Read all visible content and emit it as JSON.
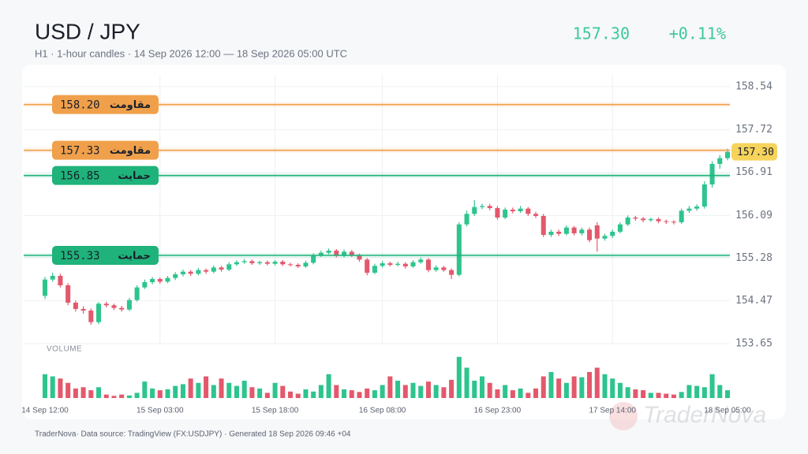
{
  "chart_data": {
    "type": "candlestick",
    "title": "USD / JPY",
    "subtitle": "H1 · 1-hour candles · 14 Sep 2026 12:00 — 18 Sep 2026 05:00 UTC",
    "price": "157.30",
    "change": "+0.11%",
    "volume_label": "VOLUME",
    "footer": "TraderNova· Data source: TradingView (FX:USDJPY) · Generated 18 Sep 2026 09:46 +04",
    "watermark": "TraderNova",
    "up_color": "#2ec48e",
    "down_color": "#e4586c",
    "price_color": "#3cc99b",
    "badge_color": "#f6d35b",
    "grid": true,
    "ylim": [
      153.65,
      158.54
    ],
    "yticks": [
      153.65,
      154.47,
      155.28,
      156.09,
      156.91,
      157.72,
      158.54
    ],
    "volume_ylim": [
      0,
      100
    ],
    "categories": [
      "14 Sep 12:00",
      null,
      null,
      null,
      null,
      null,
      null,
      null,
      null,
      null,
      null,
      null,
      null,
      null,
      null,
      "15 Sep 03:00",
      null,
      null,
      null,
      null,
      null,
      null,
      null,
      null,
      null,
      null,
      null,
      null,
      null,
      null,
      "15 Sep 18:00",
      null,
      null,
      null,
      null,
      null,
      null,
      null,
      null,
      null,
      null,
      null,
      null,
      null,
      "16 Sep 08:00",
      null,
      null,
      null,
      null,
      null,
      null,
      null,
      null,
      null,
      null,
      null,
      null,
      null,
      null,
      "16 Sep 23:00",
      null,
      null,
      null,
      null,
      null,
      null,
      null,
      null,
      null,
      null,
      null,
      null,
      null,
      null,
      "17 Sep 14:00",
      null,
      null,
      null,
      null,
      null,
      null,
      null,
      null,
      null,
      null,
      null,
      null,
      null,
      null,
      "18 Sep 05:00"
    ],
    "open": [
      154.56,
      154.87,
      154.94,
      154.76,
      154.43,
      154.31,
      154.28,
      154.06,
      154.41,
      154.38,
      154.33,
      154.3,
      154.48,
      154.72,
      154.82,
      154.88,
      154.83,
      154.9,
      154.97,
      155.02,
      154.98,
      155.05,
      155.02,
      155.1,
      155.06,
      155.16,
      155.2,
      155.22,
      155.18,
      155.2,
      155.17,
      155.21,
      155.16,
      155.15,
      155.12,
      155.19,
      155.33,
      155.38,
      155.42,
      155.32,
      155.4,
      155.33,
      155.25,
      155.0,
      155.13,
      155.18,
      155.15,
      155.17,
      155.12,
      155.2,
      155.25,
      155.05,
      155.1,
      155.05,
      154.96,
      155.92,
      156.12,
      156.25,
      156.27,
      156.23,
      156.05,
      156.2,
      156.17,
      156.22,
      156.12,
      156.08,
      155.72,
      155.78,
      155.74,
      155.86,
      155.75,
      155.82,
      155.9,
      155.65,
      155.7,
      155.78,
      155.92,
      156.05,
      156.03,
      156.0,
      156.02,
      155.98,
      155.97,
      155.96,
      156.18,
      156.22,
      156.26,
      156.68,
      157.07,
      157.18
    ],
    "high": [
      154.92,
      155.0,
      154.98,
      154.8,
      154.47,
      154.36,
      154.32,
      154.44,
      154.45,
      154.41,
      154.37,
      154.52,
      154.76,
      154.87,
      154.92,
      154.91,
      154.94,
      155.01,
      155.06,
      155.05,
      155.09,
      155.08,
      155.14,
      155.13,
      155.2,
      155.24,
      155.26,
      155.25,
      155.23,
      155.23,
      155.24,
      155.24,
      155.19,
      155.18,
      155.23,
      155.37,
      155.42,
      155.46,
      155.45,
      155.44,
      155.43,
      155.36,
      155.28,
      155.17,
      155.22,
      155.21,
      155.21,
      155.2,
      155.24,
      155.29,
      155.28,
      155.14,
      155.13,
      155.08,
      155.96,
      156.18,
      156.38,
      156.31,
      156.31,
      156.27,
      156.24,
      156.24,
      156.27,
      156.25,
      156.16,
      156.12,
      155.82,
      155.82,
      155.9,
      155.89,
      155.86,
      155.86,
      155.96,
      155.74,
      155.82,
      155.96,
      156.09,
      156.08,
      156.06,
      156.05,
      156.05,
      156.01,
      156.0,
      156.22,
      156.27,
      156.3,
      156.74,
      157.12,
      157.24,
      157.36
    ],
    "low": [
      154.5,
      154.83,
      154.72,
      154.38,
      154.26,
      154.22,
      154.01,
      154.02,
      154.34,
      154.29,
      154.26,
      154.27,
      154.45,
      154.69,
      154.78,
      154.79,
      154.8,
      154.86,
      154.93,
      154.94,
      154.95,
      154.98,
      154.99,
      155.02,
      155.03,
      155.13,
      155.17,
      155.15,
      155.15,
      155.14,
      155.14,
      155.13,
      155.12,
      155.09,
      155.09,
      155.16,
      155.3,
      155.35,
      155.29,
      155.29,
      155.3,
      155.21,
      154.95,
      154.97,
      155.1,
      155.12,
      155.12,
      155.08,
      155.09,
      155.17,
      155.01,
      155.02,
      155.02,
      154.88,
      154.93,
      155.88,
      156.08,
      156.21,
      156.19,
      156.01,
      156.02,
      156.13,
      156.14,
      156.08,
      156.04,
      155.68,
      155.68,
      155.7,
      155.71,
      155.71,
      155.71,
      155.58,
      155.4,
      155.61,
      155.66,
      155.75,
      155.89,
      155.99,
      155.96,
      155.97,
      155.94,
      155.93,
      155.92,
      155.93,
      156.14,
      156.18,
      156.22,
      156.62,
      156.98,
      157.14
    ],
    "close": [
      154.87,
      154.94,
      154.76,
      154.43,
      154.31,
      154.28,
      154.06,
      154.41,
      154.38,
      154.33,
      154.3,
      154.48,
      154.72,
      154.82,
      154.88,
      154.83,
      154.9,
      154.97,
      155.02,
      154.98,
      155.05,
      155.02,
      155.1,
      155.06,
      155.16,
      155.2,
      155.22,
      155.18,
      155.2,
      155.17,
      155.21,
      155.16,
      155.15,
      155.12,
      155.19,
      155.33,
      155.38,
      155.42,
      155.32,
      155.4,
      155.33,
      155.25,
      155.0,
      155.13,
      155.18,
      155.15,
      155.17,
      155.12,
      155.2,
      155.25,
      155.05,
      155.1,
      155.05,
      154.96,
      155.92,
      156.12,
      156.25,
      156.27,
      156.23,
      156.05,
      156.2,
      156.17,
      156.22,
      156.12,
      156.08,
      155.72,
      155.78,
      155.74,
      155.86,
      155.75,
      155.82,
      155.62,
      155.65,
      155.7,
      155.78,
      155.92,
      156.05,
      156.03,
      156.0,
      156.02,
      155.98,
      155.97,
      155.96,
      156.18,
      156.22,
      156.26,
      156.68,
      157.07,
      157.18,
      157.3
    ],
    "volume": [
      55,
      50,
      45,
      35,
      22,
      25,
      18,
      25,
      8,
      5,
      8,
      6,
      12,
      38,
      22,
      18,
      20,
      28,
      32,
      45,
      35,
      50,
      30,
      45,
      35,
      28,
      40,
      25,
      22,
      12,
      35,
      28,
      15,
      10,
      20,
      15,
      30,
      55,
      30,
      20,
      18,
      14,
      22,
      18,
      30,
      50,
      40,
      30,
      35,
      28,
      38,
      30,
      25,
      42,
      95,
      70,
      40,
      50,
      35,
      20,
      30,
      18,
      22,
      12,
      22,
      50,
      60,
      45,
      35,
      50,
      48,
      60,
      70,
      55,
      45,
      35,
      25,
      20,
      18,
      12,
      12,
      10,
      8,
      14,
      30,
      28,
      25,
      55,
      30,
      18
    ],
    "levels": [
      {
        "value": 158.2,
        "value_label": "158.20",
        "label": "مقاومت",
        "color": "#f0a04b"
      },
      {
        "value": 157.33,
        "value_label": "157.33",
        "label": "مقاومت",
        "color": "#f0a04b"
      },
      {
        "value": 156.85,
        "value_label": "156.85",
        "label": "حمایت",
        "color": "#1fb37b"
      },
      {
        "value": 155.33,
        "value_label": "155.33",
        "label": "حمایت",
        "color": "#1fb37b"
      }
    ]
  }
}
